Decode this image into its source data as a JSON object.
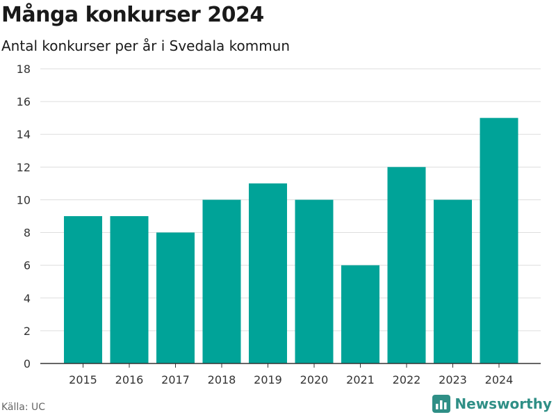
{
  "header": {
    "title": "Många konkurser 2024",
    "subtitle": "Antal konkurser per år i Svedala kommun"
  },
  "footer": {
    "source": "Källa: UC",
    "brand": "Newsworthy"
  },
  "colors": {
    "bar": "#00a398",
    "grid": "#dddddd",
    "axis": "#333333",
    "brand": "#2f8f86"
  },
  "chart_data": {
    "type": "bar",
    "categories": [
      "2015",
      "2016",
      "2017",
      "2018",
      "2019",
      "2020",
      "2021",
      "2022",
      "2023",
      "2024"
    ],
    "values": [
      9,
      9,
      8,
      10,
      11,
      10,
      6,
      12,
      10,
      15
    ],
    "title": "Många konkurser 2024",
    "subtitle": "Antal konkurser per år i Svedala kommun",
    "xlabel": "",
    "ylabel": "",
    "ylim": [
      0,
      18
    ],
    "yticks": [
      0,
      2,
      4,
      6,
      8,
      10,
      12,
      14,
      16,
      18
    ],
    "grid": true,
    "legend": "none"
  }
}
